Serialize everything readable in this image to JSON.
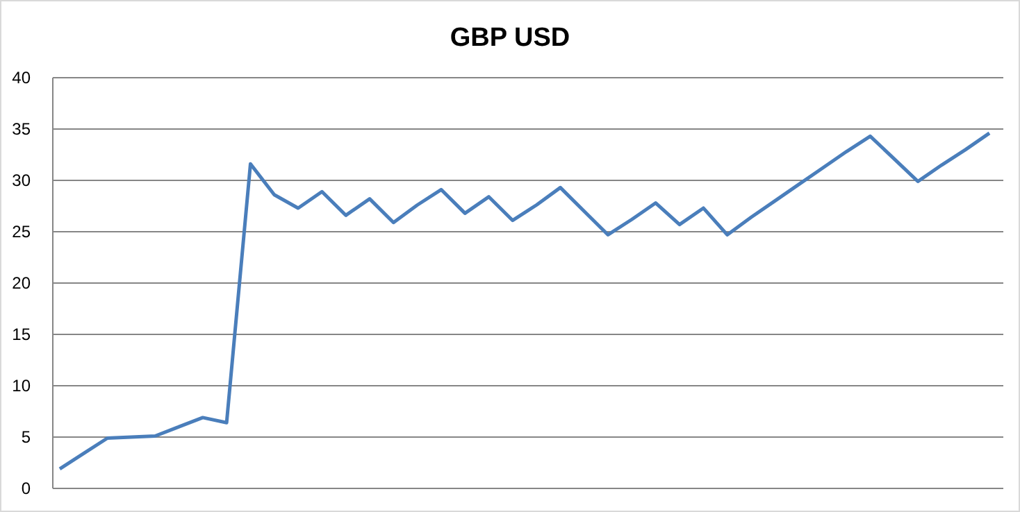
{
  "chart_data": {
    "type": "line",
    "title": "GBP USD",
    "categories": [
      null,
      null,
      null,
      null,
      null,
      null,
      null,
      null,
      null,
      null,
      null,
      null,
      null,
      null,
      null,
      null,
      null,
      null,
      null,
      null,
      null,
      null,
      null,
      null,
      null,
      null,
      null,
      null,
      null,
      null,
      null,
      null,
      null,
      null,
      null,
      null,
      null,
      null,
      null,
      null
    ],
    "series": [
      {
        "color": "#4a7ebb",
        "values": [
          1.9,
          3.4,
          4.9,
          5.0,
          5.1,
          6.0,
          6.9,
          6.4,
          31.6,
          28.6,
          27.3,
          28.9,
          26.6,
          28.2,
          25.9,
          27.6,
          29.1,
          26.8,
          28.4,
          26.1,
          27.6,
          29.3,
          27.0,
          24.7,
          26.2,
          27.8,
          25.7,
          27.3,
          24.7,
          26.4,
          28.0,
          29.6,
          31.2,
          32.8,
          34.3,
          32.1,
          29.9,
          31.5,
          33.0,
          34.6
        ]
      }
    ],
    "ylim": [
      0,
      40
    ],
    "yticks": [
      0,
      5,
      10,
      15,
      20,
      25,
      30,
      35,
      40
    ],
    "grid": "y",
    "tick_labels": "y",
    "marker": "none",
    "line_style": "solid"
  }
}
